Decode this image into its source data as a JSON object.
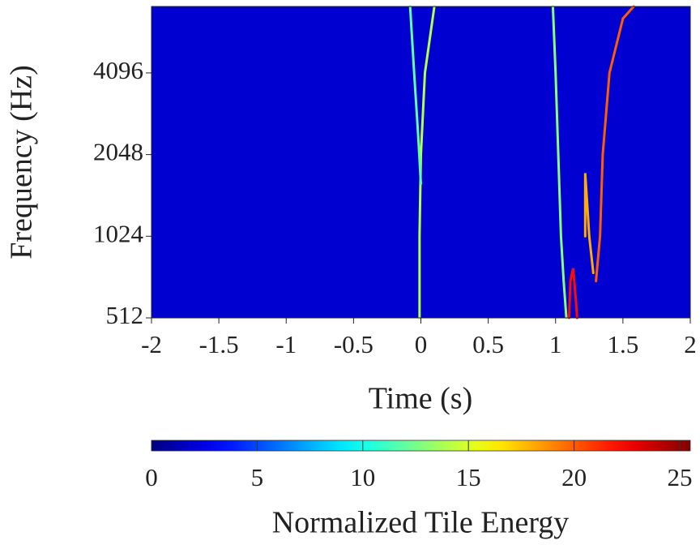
{
  "chart_data": {
    "type": "spectrogram",
    "xlabel": "Time (s)",
    "ylabel": "Frequency (Hz)",
    "colorbar_label": "Normalized Tile Energy",
    "xlim": [
      -2,
      2
    ],
    "xticks": [
      -2,
      -1.5,
      -1,
      -0.5,
      0,
      0.5,
      1,
      1.5,
      2
    ],
    "ylim": [
      512,
      7200
    ],
    "yticks": [
      512,
      1024,
      2048,
      4096
    ],
    "log_y": true,
    "clim": [
      0,
      25.5
    ],
    "cticks": [
      0,
      5,
      10,
      15,
      20,
      25
    ],
    "colormap": "jet",
    "background_energy": 2,
    "tracks": [
      {
        "x": [
          -0.01,
          -0.01,
          0.0,
          0.03,
          0.1
        ],
        "y": [
          512,
          1024,
          2048,
          4096,
          7200
        ],
        "energy": 14
      },
      {
        "x": [
          -0.08,
          -0.05,
          -0.02,
          0.0
        ],
        "y": [
          7200,
          4096,
          2400,
          1600
        ],
        "energy": 12
      },
      {
        "x": [
          0.98,
          1.0,
          1.02,
          1.04,
          1.06,
          1.08
        ],
        "y": [
          7200,
          4096,
          2048,
          1024,
          700,
          512
        ],
        "energy": 13
      },
      {
        "x": [
          1.1,
          1.11,
          1.13,
          1.15,
          1.16
        ],
        "y": [
          512,
          700,
          780,
          600,
          512
        ],
        "energy": 22
      },
      {
        "x": [
          1.22,
          1.22,
          1.25,
          1.28
        ],
        "y": [
          1024,
          1750,
          1024,
          750
        ],
        "energy": 18
      },
      {
        "x": [
          1.3,
          1.33,
          1.35,
          1.4,
          1.5,
          1.58
        ],
        "y": [
          700,
          1024,
          2048,
          4096,
          6500,
          7200
        ],
        "energy": 20
      }
    ]
  }
}
